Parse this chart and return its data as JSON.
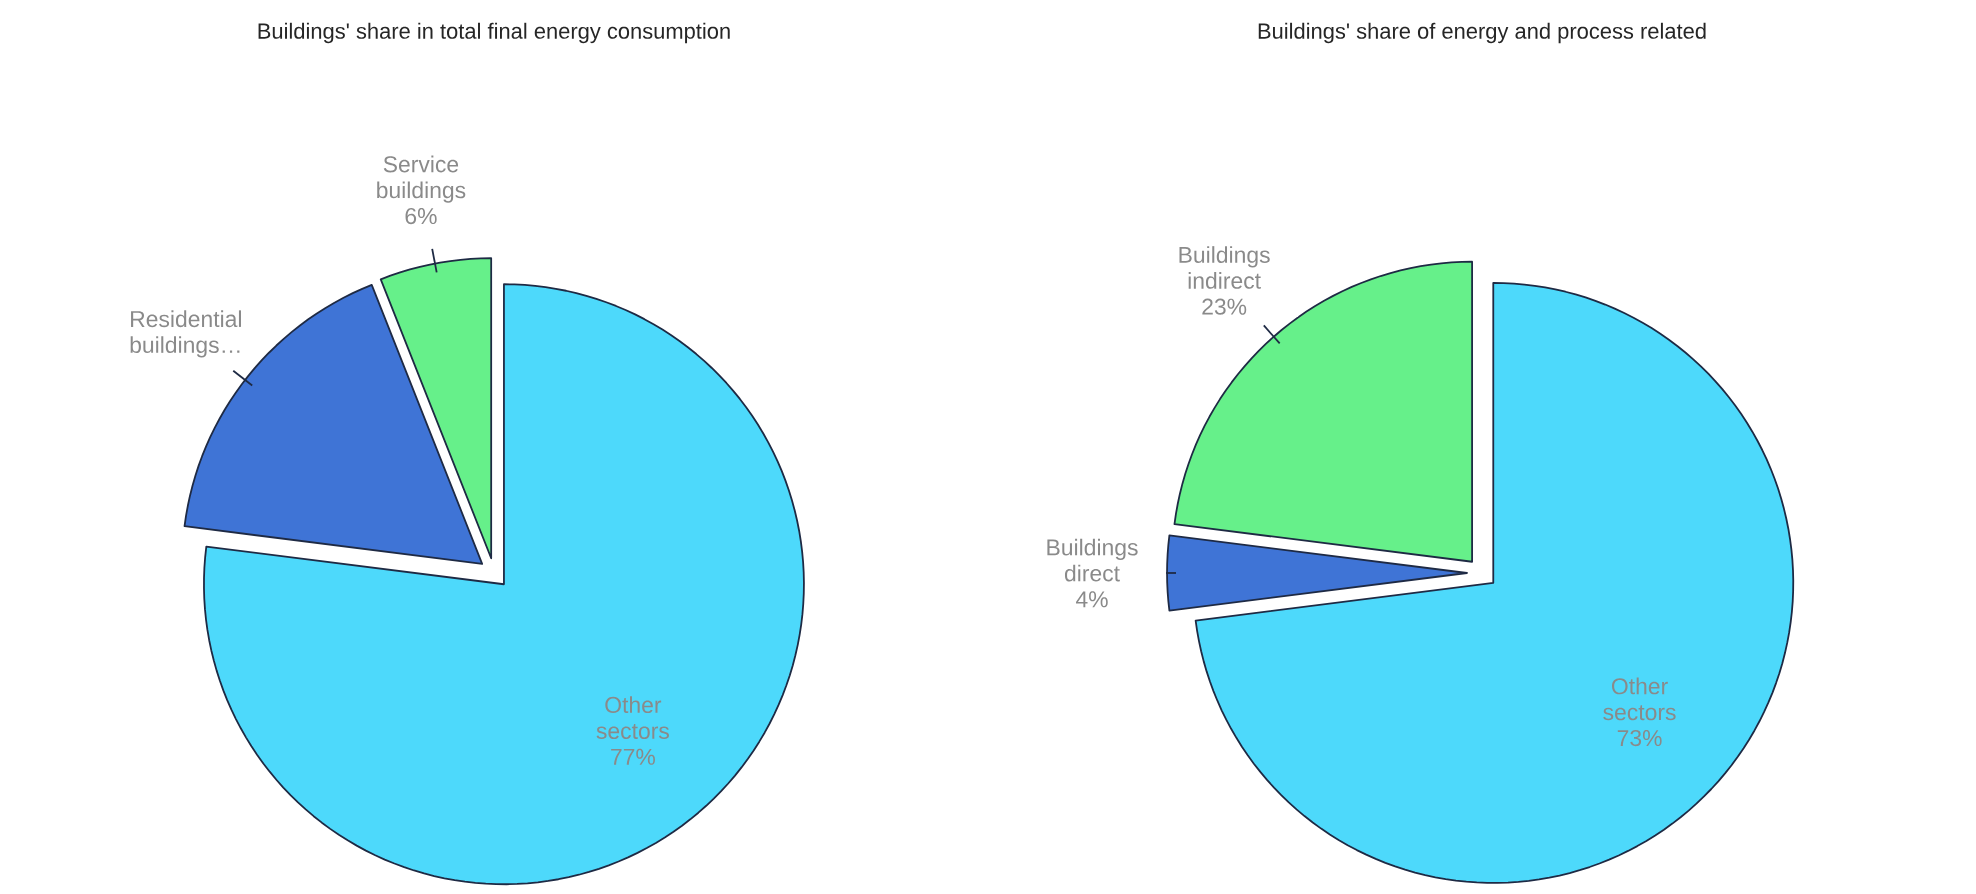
{
  "chart_data": [
    {
      "type": "pie",
      "title": "Buildings' share in total final energy consumption",
      "categories": [
        "Other sectors",
        "Residential buildings…",
        "Service buildings"
      ],
      "values": [
        77,
        17,
        6
      ],
      "value_labels": [
        "77%",
        null,
        "6%"
      ],
      "colors": [
        "#4dd9fb",
        "#3f74d6",
        "#66f08a"
      ]
    },
    {
      "type": "pie",
      "title": "Buildings' share of energy and process related",
      "categories": [
        "Other sectors",
        "Buildings direct",
        "Buildings indirect"
      ],
      "values": [
        73,
        4,
        23
      ],
      "value_labels": [
        "73%",
        "4%",
        "23%"
      ],
      "colors": [
        "#4dd9fb",
        "#3f74d6",
        "#66f08a"
      ]
    }
  ]
}
